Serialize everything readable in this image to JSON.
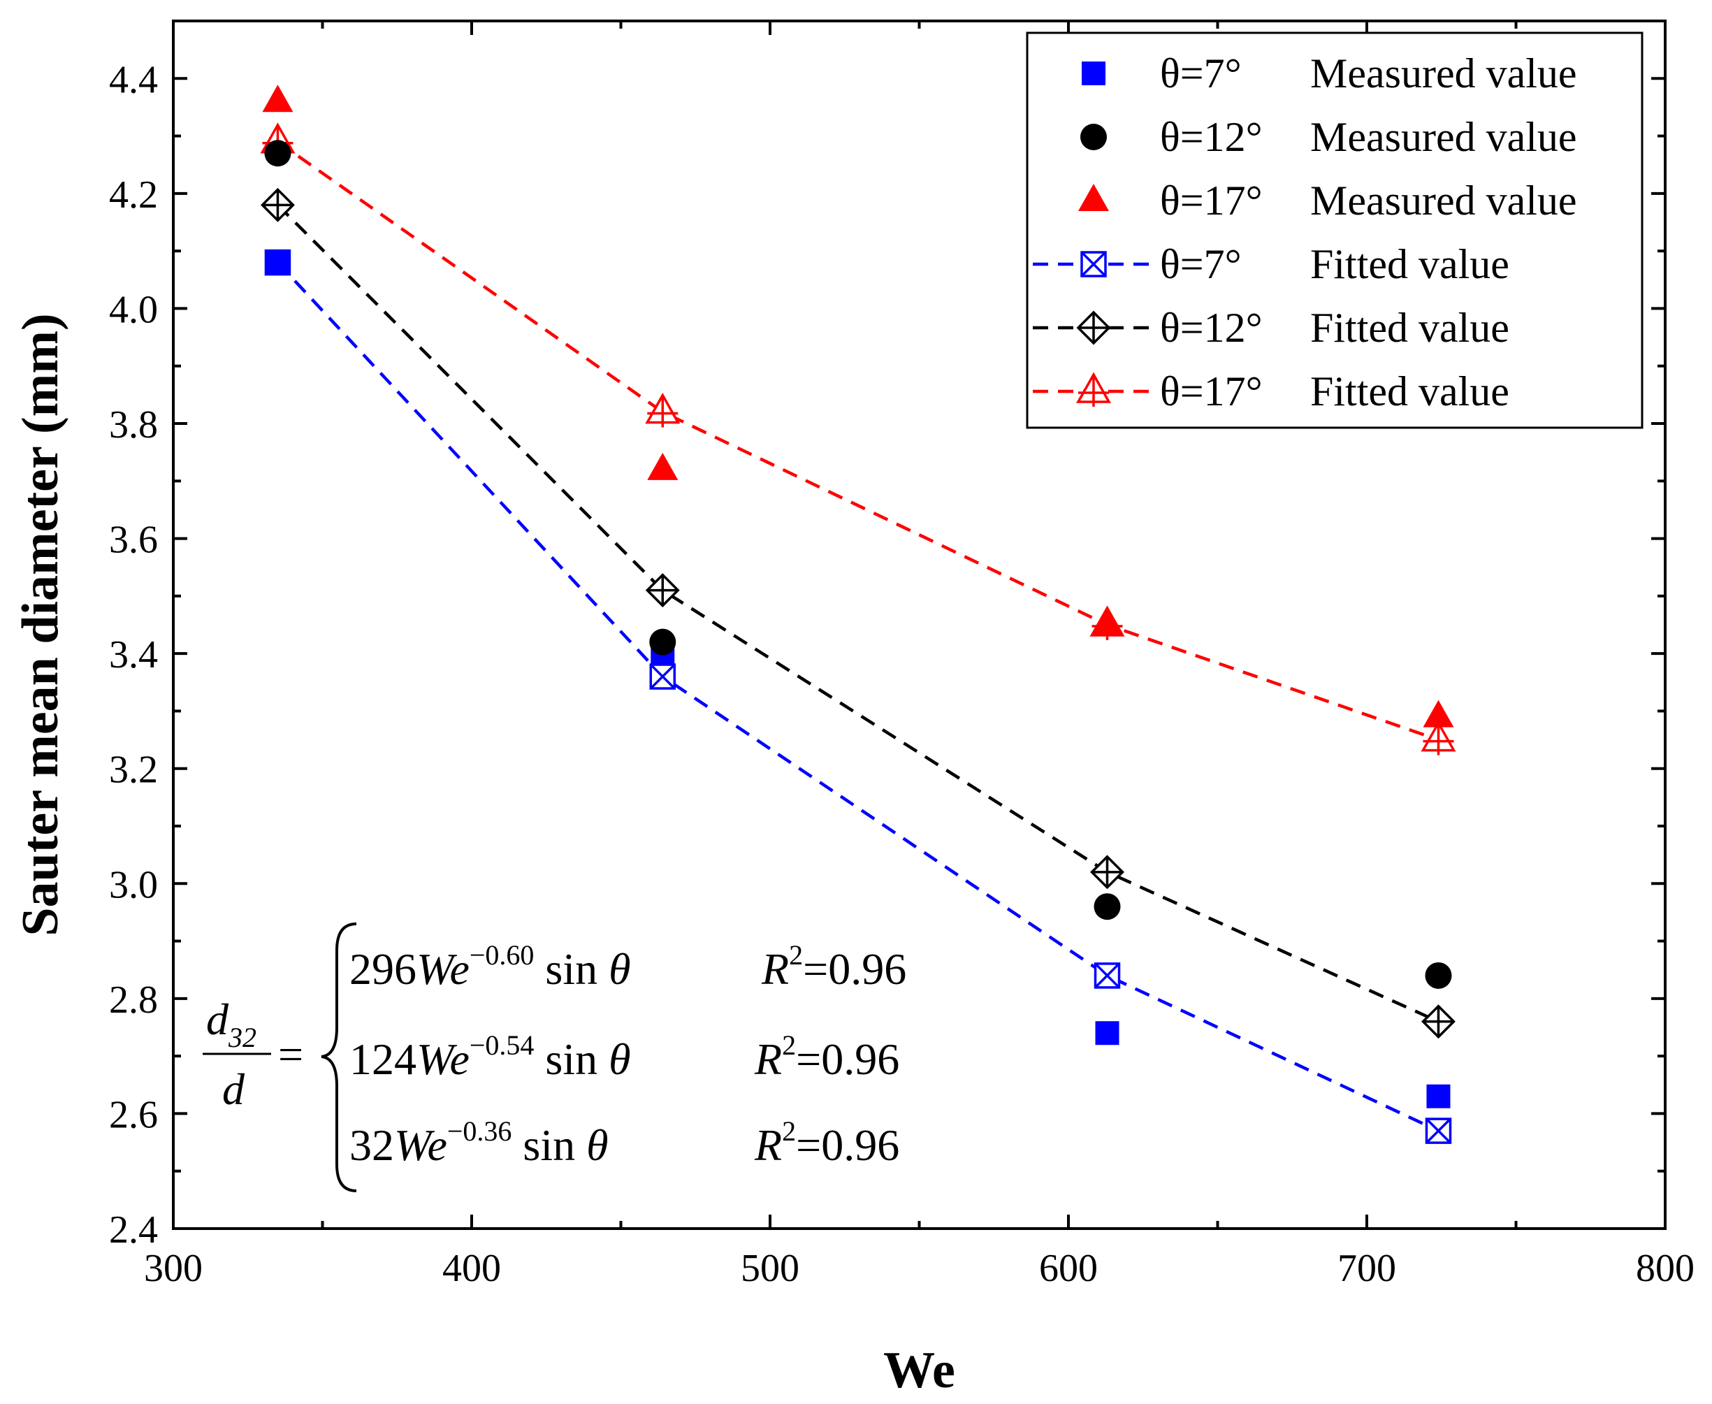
{
  "chart_data": {
    "type": "scatter",
    "title": "",
    "xlabel": "We",
    "ylabel": "Sauter mean diameter (mm)",
    "xlim": [
      300,
      800
    ],
    "ylim": [
      2.4,
      4.5
    ],
    "x_ticks": [
      300,
      400,
      500,
      600,
      700,
      800
    ],
    "x_tick_labels": [
      "300",
      "400",
      "500",
      "600",
      "700",
      "800"
    ],
    "y_ticks": [
      2.4,
      2.6,
      2.8,
      3.0,
      3.2,
      3.4,
      3.6,
      3.8,
      4.0,
      4.2,
      4.4
    ],
    "y_tick_labels": [
      "2.4",
      "2.6",
      "2.8",
      "3.0",
      "3.2",
      "3.4",
      "3.6",
      "3.8",
      "4.0",
      "4.2",
      "4.4"
    ],
    "grid": false,
    "legend_position": "top-right",
    "x": [
      335,
      464,
      613,
      724
    ],
    "series": [
      {
        "name": "θ=7°",
        "kind": "Measured value",
        "values": [
          4.08,
          3.4,
          2.74,
          2.63
        ],
        "color": "#0000ff",
        "marker": "square-filled",
        "dashed": false
      },
      {
        "name": "θ=12°",
        "kind": "Measured value",
        "values": [
          4.27,
          3.42,
          2.96,
          2.84
        ],
        "color": "#000000",
        "marker": "circle-filled",
        "dashed": false
      },
      {
        "name": "θ=17°",
        "kind": "Measured value",
        "values": [
          4.36,
          3.72,
          3.45,
          3.29
        ],
        "color": "#ff0000",
        "marker": "triangle-filled",
        "dashed": false
      },
      {
        "name": "θ=7°",
        "kind": "Fitted value",
        "values": [
          4.08,
          3.36,
          2.84,
          2.57
        ],
        "color": "#0000ff",
        "marker": "square-x",
        "dashed": true
      },
      {
        "name": "θ=12°",
        "kind": "Fitted value",
        "values": [
          4.18,
          3.51,
          3.02,
          2.76
        ],
        "color": "#000000",
        "marker": "diamond-cross",
        "dashed": true
      },
      {
        "name": "θ=17°",
        "kind": "Fitted value",
        "values": [
          4.29,
          3.82,
          3.45,
          3.25
        ],
        "color": "#ff0000",
        "marker": "triangle-cross",
        "dashed": true
      }
    ],
    "annotation": {
      "lhs_numerator": "d",
      "lhs_numerator_sub": "32",
      "lhs_denominator": "d",
      "equals": "=",
      "rows": [
        {
          "coef": "296",
          "var": "We",
          "exp": "−0.60",
          "func": "sin",
          "angle": "θ",
          "r_label": "R",
          "r_exp": "2",
          "r_value": "=0.96"
        },
        {
          "coef": "124",
          "var": "We",
          "exp": "−0.54",
          "func": "sin",
          "angle": "θ",
          "r_label": "R",
          "r_exp": "2",
          "r_value": "=0.96"
        },
        {
          "coef": "32",
          "var": "We",
          "exp": "−0.36",
          "func": "sin",
          "angle": "θ",
          "r_label": "R",
          "r_exp": "2",
          "r_value": "=0.96"
        }
      ]
    }
  }
}
